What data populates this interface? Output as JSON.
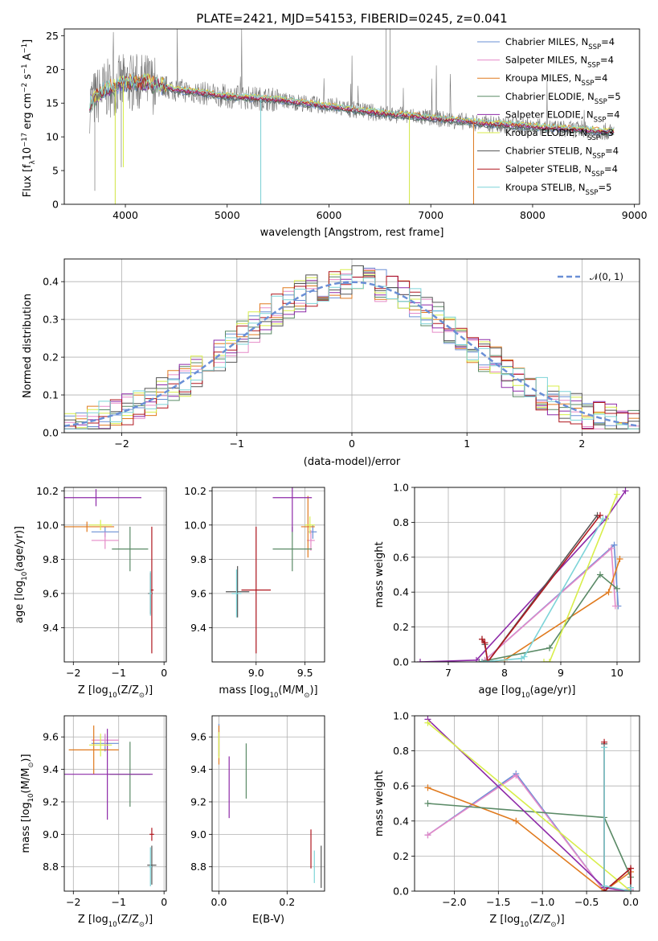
{
  "series_colors": [
    "#6a8fd6",
    "#e58ac8",
    "#e07a1e",
    "#5a8a66",
    "#8e2aa8",
    "#d8ee4a",
    "#555555",
    "#b0171f",
    "#7dd4d8"
  ],
  "chart_data": [
    {
      "id": "spectrum",
      "type": "line",
      "title": "PLATE=2421, MJD=54153, FIBERID=0245, z=0.041",
      "xlabel": "wavelength [Angstrom, rest frame]",
      "ylabel": "Flux [f",
      "ylabel_parts": [
        "Flux [f",
        "λ",
        "10",
        "−17",
        " erg cm",
        "−2",
        " s",
        "−1",
        " A",
        "−1",
        "]"
      ],
      "xlim": [
        3400,
        9050
      ],
      "ylim": [
        0,
        26
      ],
      "xticks": [
        4000,
        5000,
        6000,
        7000,
        8000,
        9000
      ],
      "yticks": [
        0,
        5,
        10,
        15,
        20,
        25
      ],
      "legend": [
        {
          "name": "Chabrier MILES, N",
          "sub": "SSP",
          "tail": "=4"
        },
        {
          "name": "Salpeter MILES, N",
          "sub": "SSP",
          "tail": "=4"
        },
        {
          "name": "Kroupa MILES, N",
          "sub": "SSP",
          "tail": "=4"
        },
        {
          "name": "Chabrier ELODIE, N",
          "sub": "SSP",
          "tail": "=5"
        },
        {
          "name": "Salpeter ELODIE, N",
          "sub": "SSP",
          "tail": "=4"
        },
        {
          "name": "Kroupa ELODIE, N",
          "sub": "SSP",
          "tail": "=3"
        },
        {
          "name": "Chabrier STELIB, N",
          "sub": "SSP",
          "tail": "=4"
        },
        {
          "name": "Salpeter STELIB, N",
          "sub": "SSP",
          "tail": "=4"
        },
        {
          "name": "Kroupa STELIB, N",
          "sub": "SSP",
          "tail": "=5"
        }
      ],
      "continuum": [
        [
          3650,
          15
        ],
        [
          3800,
          17
        ],
        [
          4000,
          18
        ],
        [
          4200,
          18
        ],
        [
          4500,
          17
        ],
        [
          5000,
          16
        ],
        [
          5500,
          15.5
        ],
        [
          6000,
          14.5
        ],
        [
          6500,
          13.5
        ],
        [
          7000,
          12.8
        ],
        [
          7500,
          12
        ],
        [
          8000,
          11.5
        ],
        [
          8500,
          11
        ],
        [
          8800,
          10.7
        ]
      ],
      "spectrum_range": [
        3650,
        8800
      ]
    },
    {
      "id": "residuals",
      "type": "line",
      "xlabel": "(data-model)/error",
      "ylabel": "Normed distribution",
      "xlim": [
        -2.5,
        2.5
      ],
      "ylim": [
        0,
        0.46
      ],
      "xticks": [
        -2,
        -1,
        0,
        1,
        2
      ],
      "yticks": [
        0.0,
        0.1,
        0.2,
        0.3,
        0.4
      ],
      "ytick_labels": [
        "0.0",
        "0.1",
        "0.2",
        "0.3",
        "0.4"
      ],
      "legend_label": "𝒩(0, 1)",
      "bin_width": 0.1
    },
    {
      "id": "age_vs_Z",
      "type": "scatter",
      "xlabel": "Z [log",
      "xlabel_parts": [
        "Z [log",
        "10",
        "(Z/Z",
        "⊙",
        ")]"
      ],
      "ylabel_parts": [
        "age  [log",
        "10",
        "(age/yr)]"
      ],
      "xlim": [
        -2.2,
        0.05
      ],
      "ylim": [
        9.2,
        10.22
      ],
      "xticks": [
        -2,
        -1,
        0
      ],
      "yticks": [
        9.4,
        9.6,
        9.8,
        10.0,
        10.2
      ],
      "points": [
        {
          "x": -1.3,
          "y": 9.96,
          "xerr": 0.3,
          "yerr": 0.03
        },
        {
          "x": -1.3,
          "y": 9.91,
          "xerr": 0.3,
          "yerr": 0.05
        },
        {
          "x": -1.7,
          "y": 9.99,
          "xerr": 0.6,
          "yerr": 0.03
        },
        {
          "x": -0.75,
          "y": 9.86,
          "xerr": 0.4,
          "yerr": 0.13
        },
        {
          "x": -1.5,
          "y": 10.16,
          "xerr": 1.0,
          "yerr": 0.05
        },
        {
          "x": -1.4,
          "y": 10.0,
          "xerr": 0.25,
          "yerr": 0.03
        },
        {
          "x": -0.3,
          "y": 9.6,
          "xerr": 0.05,
          "yerr": 0.12
        },
        {
          "x": -0.27,
          "y": 9.62,
          "xerr": 0.04,
          "yerr": 0.37
        },
        {
          "x": -0.3,
          "y": 9.6,
          "xerr": 0.03,
          "yerr": 0.13
        }
      ]
    },
    {
      "id": "age_vs_mass",
      "type": "scatter",
      "xlabel_parts": [
        "mass [log",
        "10",
        "(M/M",
        "⊙",
        ")]"
      ],
      "xlim": [
        8.55,
        9.7
      ],
      "ylim": [
        9.2,
        10.22
      ],
      "xticks": [
        9.0,
        9.5
      ],
      "xtick_labels": [
        "9.0",
        "9.5"
      ],
      "yticks": [
        9.4,
        9.6,
        9.8,
        10.0,
        10.2
      ],
      "points": [
        {
          "x": 9.58,
          "y": 9.96,
          "xerr": 0.04,
          "yerr": 0.04
        },
        {
          "x": 9.56,
          "y": 9.91,
          "xerr": 0.04,
          "yerr": 0.06
        },
        {
          "x": 9.53,
          "y": 9.99,
          "xerr": 0.07,
          "yerr": 0.18
        },
        {
          "x": 9.37,
          "y": 9.86,
          "xerr": 0.2,
          "yerr": 0.13
        },
        {
          "x": 9.37,
          "y": 10.16,
          "xerr": 0.2,
          "yerr": 0.2
        },
        {
          "x": 9.55,
          "y": 10.0,
          "xerr": 0.05,
          "yerr": 0.05
        },
        {
          "x": 8.81,
          "y": 9.61,
          "xerr": 0.12,
          "yerr": 0.15
        },
        {
          "x": 9.0,
          "y": 9.62,
          "xerr": 0.15,
          "yerr": 0.37
        },
        {
          "x": 8.8,
          "y": 9.6,
          "xerr": 0.05,
          "yerr": 0.14
        }
      ]
    },
    {
      "id": "mass_weight_vs_age",
      "type": "line",
      "xlabel_parts": [
        "age  [log",
        "10",
        "(age/yr)]"
      ],
      "ylabel": "mass weight",
      "xlim": [
        6.4,
        10.4
      ],
      "ylim": [
        0,
        1.0
      ],
      "xticks": [
        7,
        8,
        9,
        10
      ],
      "yticks": [
        0.0,
        0.2,
        0.4,
        0.6,
        0.8,
        1.0
      ],
      "ytick_labels": [
        "0.0",
        "0.2",
        "0.4",
        "0.6",
        "0.8",
        "1.0"
      ],
      "series": [
        {
          "x": [
            7.6,
            7.65,
            9.95,
            10.02
          ],
          "y": [
            0.0,
            0.01,
            0.67,
            0.32
          ]
        },
        {
          "x": [
            7.6,
            7.65,
            9.9,
            9.97
          ],
          "y": [
            0.0,
            0.01,
            0.65,
            0.32
          ]
        },
        {
          "x": [
            7.6,
            8.0,
            9.85,
            10.05
          ],
          "y": [
            0.0,
            0.01,
            0.4,
            0.59
          ]
        },
        {
          "x": [
            7.55,
            8.8,
            9.7,
            10.0
          ],
          "y": [
            0.0,
            0.08,
            0.5,
            0.42
          ]
        },
        {
          "x": [
            6.5,
            7.5,
            9.8,
            10.15
          ],
          "y": [
            0.0,
            0.01,
            0.82,
            0.98
          ]
        },
        {
          "x": [
            8.7,
            8.8,
            10.0
          ],
          "y": [
            0.0,
            0.0,
            0.96
          ]
        },
        {
          "x": [
            7.6,
            7.65,
            7.7,
            9.65
          ],
          "y": [
            0.13,
            0.1,
            0.0,
            0.84
          ]
        },
        {
          "x": [
            7.6,
            7.65,
            7.7,
            9.7
          ],
          "y": [
            0.13,
            0.11,
            0.0,
            0.84
          ]
        },
        {
          "x": [
            7.6,
            8.3,
            8.35,
            9.75
          ],
          "y": [
            0.0,
            0.02,
            0.03,
            0.82
          ]
        }
      ]
    },
    {
      "id": "mass_vs_Z",
      "type": "scatter",
      "xlabel_parts": [
        "Z [log",
        "10",
        "(Z/Z",
        "⊙",
        ")]"
      ],
      "ylabel_parts": [
        "mass [log",
        "10",
        "(M/M",
        "⊙",
        ")]"
      ],
      "xlim": [
        -2.2,
        0.05
      ],
      "ylim": [
        8.65,
        9.73
      ],
      "xticks": [
        -2,
        -1,
        0
      ],
      "yticks": [
        8.8,
        9.0,
        9.2,
        9.4,
        9.6
      ],
      "points": [
        {
          "x": -1.3,
          "y": 9.56,
          "xerr": 0.3,
          "yerr": 0.05
        },
        {
          "x": -1.3,
          "y": 9.58,
          "xerr": 0.3,
          "yerr": 0.04
        },
        {
          "x": -1.55,
          "y": 9.52,
          "xerr": 0.55,
          "yerr": 0.15
        },
        {
          "x": -0.75,
          "y": 9.37,
          "xerr": 0.45,
          "yerr": 0.2
        },
        {
          "x": -1.25,
          "y": 9.37,
          "xerr": 1.0,
          "yerr": 0.28
        },
        {
          "x": -1.4,
          "y": 9.55,
          "xerr": 0.25,
          "yerr": 0.07
        },
        {
          "x": -0.27,
          "y": 8.81,
          "xerr": 0.1,
          "yerr": 0.12
        },
        {
          "x": -0.27,
          "y": 9.0,
          "xerr": 0.05,
          "yerr": 0.04
        },
        {
          "x": -0.3,
          "y": 8.8,
          "xerr": 0.03,
          "yerr": 0.12
        }
      ]
    },
    {
      "id": "mass_vs_EBV",
      "type": "scatter",
      "xlabel": "E(B-V)",
      "xlim": [
        -0.02,
        0.31
      ],
      "ylim": [
        8.65,
        9.73
      ],
      "xticks": [
        0.0,
        0.2
      ],
      "xtick_labels": [
        "0.0",
        "0.2"
      ],
      "yticks": [
        8.8,
        9.0,
        9.2,
        9.4,
        9.6
      ],
      "points": [
        {
          "x": 0.0,
          "y": 9.58,
          "xerr": 0,
          "yerr": 0.1
        },
        {
          "x": 0.0,
          "y": 9.56,
          "xerr": 0,
          "yerr": 0.08
        },
        {
          "x": 0.0,
          "y": 9.55,
          "xerr": 0,
          "yerr": 0.12
        },
        {
          "x": 0.08,
          "y": 9.39,
          "xerr": 0,
          "yerr": 0.17
        },
        {
          "x": 0.03,
          "y": 9.29,
          "xerr": 0,
          "yerr": 0.19
        },
        {
          "x": 0.0,
          "y": 9.55,
          "xerr": 0,
          "yerr": 0.08
        },
        {
          "x": 0.3,
          "y": 8.8,
          "xerr": 0,
          "yerr": 0.13
        },
        {
          "x": 0.27,
          "y": 8.91,
          "xerr": 0,
          "yerr": 0.12
        },
        {
          "x": 0.28,
          "y": 8.8,
          "xerr": 0,
          "yerr": 0.1
        }
      ]
    },
    {
      "id": "mass_weight_vs_Z",
      "type": "line",
      "xlabel_parts": [
        "Z [log",
        "10",
        "(Z/Z",
        "⊙",
        ")]"
      ],
      "ylabel": "mass weight",
      "xlim": [
        -2.45,
        0.1
      ],
      "ylim": [
        0,
        1.0
      ],
      "xticks": [
        -2.0,
        -1.5,
        -1.0,
        -0.5,
        0.0
      ],
      "xtick_labels": [
        "−2.0",
        "−1.5",
        "−1.0",
        "−0.5",
        "0.0"
      ],
      "yticks": [
        0.0,
        0.2,
        0.4,
        0.6,
        0.8,
        1.0
      ],
      "ytick_labels": [
        "0.0",
        "0.2",
        "0.4",
        "0.6",
        "0.8",
        "1.0"
      ],
      "series": [
        {
          "x": [
            -2.3,
            -1.3,
            -0.3,
            0.0
          ],
          "y": [
            0.32,
            0.67,
            0.0,
            0.01
          ]
        },
        {
          "x": [
            -2.3,
            -1.3,
            -0.3,
            0.0
          ],
          "y": [
            0.32,
            0.66,
            0.0,
            0.01
          ]
        },
        {
          "x": [
            -2.3,
            -1.3,
            -0.3,
            0.0
          ],
          "y": [
            0.59,
            0.4,
            0.0,
            0.11
          ]
        },
        {
          "x": [
            -2.3,
            -0.3,
            0.0,
            0.0
          ],
          "y": [
            0.5,
            0.42,
            0.08,
            0.0
          ]
        },
        {
          "x": [
            -2.3,
            -0.3,
            0.0
          ],
          "y": [
            0.98,
            0.02,
            0.0
          ]
        },
        {
          "x": [
            -2.3,
            0.0
          ],
          "y": [
            0.96,
            0.0
          ]
        },
        {
          "x": [
            -0.3,
            -0.3,
            0.0,
            0.0
          ],
          "y": [
            0.84,
            0.0,
            0.13,
            0.0
          ]
        },
        {
          "x": [
            -0.3,
            -0.3,
            0.0,
            0.0
          ],
          "y": [
            0.85,
            0.0,
            0.13,
            0.0
          ]
        },
        {
          "x": [
            -0.3,
            -0.3,
            0.0,
            0.0
          ],
          "y": [
            0.82,
            0.03,
            0.0,
            0.02
          ]
        }
      ]
    }
  ]
}
